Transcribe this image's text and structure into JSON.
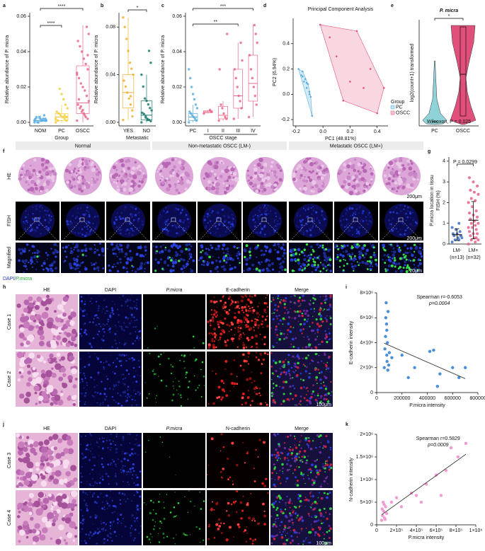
{
  "panel_letters": [
    "a",
    "b",
    "c",
    "d",
    "e",
    "f",
    "g",
    "h",
    "i",
    "j",
    "k"
  ],
  "chart_data": [
    {
      "type": "box",
      "ylabel": "Relative abundance of P. micra",
      "xlabel": "Group",
      "categories": [
        "NOM",
        "PC",
        "OSCC"
      ],
      "colors": [
        "#5aaee0",
        "#f2cf3a",
        "#e8688a"
      ],
      "points": [
        [
          0,
          0.001,
          0.002,
          0.001,
          0.003,
          0,
          0.002,
          0.001,
          0.004,
          0.001,
          0.002,
          0,
          0.003,
          0.001,
          0.002
        ],
        [
          0,
          0.001,
          0.002,
          0.003,
          0.004,
          0.005,
          0.006,
          0.008,
          0.01,
          0.013,
          0.016,
          0.019,
          0.001,
          0.002,
          0.003,
          0.004
        ],
        [
          0.001,
          0.002,
          0.003,
          0.005,
          0.006,
          0.008,
          0.01,
          0.012,
          0.015,
          0.018,
          0.02,
          0.022,
          0.025,
          0.028,
          0.03,
          0.033,
          0.036,
          0.04,
          0.043,
          0.046,
          0.05,
          0.054,
          0.004,
          0.007,
          0.009,
          0.013,
          0.027,
          0.038
        ]
      ],
      "boxes": [
        [
          0,
          0.0005,
          0.001,
          0.002,
          0.004
        ],
        [
          0,
          0.001,
          0.003,
          0.005,
          0.01
        ],
        [
          0,
          0.005,
          0.011,
          0.032,
          0.055
        ]
      ],
      "ylim": [
        -0.002,
        0.062
      ],
      "yticks": [
        {
          "value": 0,
          "label": "0.00"
        },
        {
          "value": 0.02,
          "label": "0.02"
        },
        {
          "value": 0.04,
          "label": "0.04"
        },
        {
          "value": 0.06,
          "label": "0.06"
        }
      ],
      "annotations": [
        "****",
        "****"
      ]
    },
    {
      "type": "box",
      "ylabel": "Relative abundance of P. micra",
      "xlabel": "Metastatic",
      "categories": [
        "YES",
        "NO"
      ],
      "colors": [
        "#f0b030",
        "#1a7a6e"
      ],
      "points": [
        [
          0.002,
          0.01,
          0.015,
          0.02,
          0.025,
          0.03,
          0.035,
          0.04,
          0.045,
          0.05,
          0.06,
          0.07,
          0.08,
          0.088,
          0.005,
          0.022
        ],
        [
          0,
          0.001,
          0.002,
          0.003,
          0.005,
          0.007,
          0.008,
          0.01,
          0.012,
          0.015,
          0.018,
          0.02,
          0.03,
          0.04,
          0.05,
          0.06,
          0.002,
          0.004
        ]
      ],
      "boxes": [
        [
          0.002,
          0.012,
          0.025,
          0.04,
          0.088
        ],
        [
          0,
          0.002,
          0.006,
          0.018,
          0.04
        ]
      ],
      "ylim": [
        -0.003,
        0.092
      ],
      "yticks": [
        {
          "value": 0,
          "label": "0.00"
        },
        {
          "value": 0.04,
          "label": "0.04"
        },
        {
          "value": 0.08,
          "label": "0.08"
        }
      ],
      "annotations": [
        "*"
      ]
    },
    {
      "type": "box",
      "ylabel": "Relative abundance of P. micra",
      "xlabel": "OSCC stage",
      "categories": [
        "PC",
        "I",
        "II",
        "III",
        "IV"
      ],
      "colors": [
        "#5aaee0",
        "#e8688a",
        "#e8688a",
        "#e8688a",
        "#e8688a"
      ],
      "points": [
        [
          0,
          0.001,
          0.002,
          0.003,
          0.004,
          0.005,
          0.006,
          0.008,
          0.01,
          0.013,
          0.016,
          0.02,
          0.025,
          0.03
        ],
        [
          0.005,
          0.006,
          0.007
        ],
        [
          0.001,
          0.002,
          0.003,
          0.005,
          0.008,
          0.01,
          0.03,
          0.05
        ],
        [
          0.002,
          0.008,
          0.012,
          0.015,
          0.02,
          0.025,
          0.03,
          0.035,
          0.045
        ],
        [
          0.003,
          0.01,
          0.015,
          0.02,
          0.025,
          0.03,
          0.038,
          0.045,
          0.05,
          0.055
        ]
      ],
      "boxes": [
        [
          0,
          0.001,
          0.003,
          0.005,
          0.01
        ],
        [
          0.005,
          0.0055,
          0.006,
          0.0065,
          0.007
        ],
        [
          0.001,
          0.002,
          0.004,
          0.009,
          0.012
        ],
        [
          0.002,
          0.008,
          0.015,
          0.03,
          0.045
        ],
        [
          0.003,
          0.012,
          0.022,
          0.038,
          0.055
        ]
      ],
      "ylim": [
        -0.002,
        0.062
      ],
      "yticks": [
        {
          "value": 0,
          "label": "0.00"
        },
        {
          "value": 0.02,
          "label": "0.02"
        },
        {
          "value": 0.04,
          "label": "0.04"
        },
        {
          "value": 0.06,
          "label": "0.06"
        }
      ],
      "annotations": [
        "***",
        "**"
      ]
    },
    {
      "type": "scatter",
      "title": "Principal Component Analysis",
      "xlabel": "PC1 (48.81%)",
      "ylabel": "PC2 (6.94%)",
      "hull": true,
      "legend": "lower right",
      "legend_title": "Group",
      "series": [
        {
          "name": "PC",
          "color": "#5aaee0",
          "fill": "#bfe3f3",
          "x": [
            -0.18,
            -0.16,
            -0.15,
            -0.14,
            -0.13,
            -0.12,
            -0.11,
            -0.1,
            -0.09,
            -0.08,
            -0.15,
            -0.12,
            -0.1
          ],
          "y": [
            0.2,
            0.15,
            0.18,
            0.1,
            0.12,
            0.05,
            0.08,
            0.02,
            -0.02,
            -0.17,
            0.14,
            0.09,
            0
          ]
        },
        {
          "name": "OSCC",
          "color": "#e8507a",
          "fill": "#f7c6d3",
          "x": [
            -0.02,
            0.05,
            0.1,
            0.2,
            0.25,
            0.3,
            0.35,
            0.4,
            0.45,
            0.15
          ],
          "y": [
            0.55,
            0.45,
            0.3,
            0.1,
            0.5,
            0.05,
            0.2,
            -0.15,
            0.05,
            -0.05
          ]
        }
      ],
      "xlim": [
        -0.22,
        0.48
      ],
      "ylim": [
        -0.25,
        0.6
      ],
      "xticks": [
        -0.2,
        {
          "value": 0,
          "label": "0.0"
        },
        0.2,
        0.4
      ],
      "yticks": [
        -0.2,
        {
          "value": 0,
          "label": "0.0"
        },
        0.2,
        0.4
      ]
    },
    {
      "type": "violin",
      "title": "P. micra",
      "ylabel": "log2(count+1) transformed",
      "categories": [
        "PC",
        "OSCC"
      ],
      "colors": [
        "#8fd3d8",
        "#e0507a"
      ],
      "annotations": [
        "*",
        "Wilcoxon, P = 0.025"
      ]
    },
    {
      "type": "dot",
      "ylabel": [
        "P.micra location in tissu",
        "FISH (%)"
      ],
      "categories": [
        "LM-",
        "LM+"
      ],
      "n_labels": [
        "(n=13)",
        "(n=32)"
      ],
      "colors": [
        "#4a78c8",
        "#e8688a"
      ],
      "points": [
        [
          0.1,
          0.2,
          0.2,
          0.3,
          0.3,
          0.4,
          0.4,
          0.5,
          0.5,
          0.6,
          0.7,
          0.8,
          1
        ],
        [
          0,
          0.1,
          0.2,
          0.2,
          0.3,
          0.4,
          0.5,
          0.5,
          0.6,
          0.7,
          0.8,
          0.8,
          0.9,
          1,
          1,
          1.1,
          1.2,
          1.3,
          1.4,
          1.5,
          1.6,
          1.8,
          2,
          2.1,
          2.2,
          2.4,
          2.5,
          2.6,
          2.8,
          3,
          3.2,
          0.3
        ]
      ],
      "means": [
        0.45,
        1.15
      ],
      "sd": [
        0.28,
        0.9
      ],
      "ylim": [
        0,
        4.2
      ],
      "yticks": [
        0,
        1,
        2,
        3,
        4
      ],
      "annotations": [
        "P = 0.0299"
      ]
    },
    {
      "type": "scatter",
      "trendline": true,
      "xlabel": "P.micra intensity",
      "ylabel": "E-cadherin intensity",
      "annotations": [
        "Spearman r=-0.6053",
        "p=0.0004"
      ],
      "series": [
        {
          "color": "#4a90d9",
          "x": [
            60000,
            65000,
            70000,
            72000,
            75000,
            78000,
            80000,
            82000,
            85000,
            88000,
            90000,
            95000,
            100000,
            120000,
            200000,
            250000,
            300000,
            420000,
            450000,
            480000,
            500000,
            600000,
            650000,
            700000,
            80000
          ],
          "y": [
            2000000,
            3500000,
            4500000,
            6000000,
            7200000,
            5500000,
            3000000,
            2500000,
            4000000,
            1800000,
            6500000,
            2200000,
            3200000,
            2800000,
            3000000,
            1200000,
            2000000,
            3300000,
            3400000,
            500000,
            1500000,
            2000000,
            1200000,
            2000000,
            5000000
          ]
        }
      ],
      "xlim": [
        0,
        800000
      ],
      "ylim": [
        0,
        8000000
      ],
      "xticks": [
        0,
        200000,
        400000,
        600000,
        800000
      ],
      "yticks": [
        0,
        {
          "value": 2000000,
          "label": "2×10⁶"
        },
        {
          "value": 4000000,
          "label": "4×10⁶"
        },
        {
          "value": 6000000,
          "label": "6×10⁶"
        },
        {
          "value": 8000000,
          "label": "8×10⁶"
        }
      ]
    },
    {
      "type": "scatter",
      "trendline": true,
      "xlabel": "P.micra intensity",
      "ylabel": "N-cadherin intensity",
      "annotations": [
        "Spearman r=0.5829",
        "p=0.0009"
      ],
      "series": [
        {
          "color": "#f29ad2",
          "x": [
            50000,
            60000,
            70000,
            80000,
            90000,
            100000,
            55000,
            65000,
            75000,
            85000,
            150000,
            200000,
            250000,
            350000,
            400000,
            450000,
            500000,
            600000,
            650000,
            700000,
            750000,
            820000,
            900000
          ],
          "y": [
            100000,
            200000,
            300000,
            150000,
            400000,
            250000,
            350000,
            500000,
            450000,
            120000,
            500000,
            600000,
            400000,
            700000,
            650000,
            500000,
            900000,
            1100000,
            650000,
            1200000,
            1700000,
            1500000,
            1800000
          ]
        }
      ],
      "xlim": [
        0,
        1000000
      ],
      "ylim": [
        0,
        2000000
      ],
      "xticks": [
        0,
        {
          "value": 200000,
          "label": "2×10⁵"
        },
        {
          "value": 400000,
          "label": "4×10⁵"
        },
        {
          "value": 600000,
          "label": "6×10⁵"
        },
        {
          "value": 800000,
          "label": "8×10⁵"
        },
        {
          "value": 1000000,
          "label": "1×10⁶"
        }
      ],
      "yticks": [
        0,
        {
          "value": 500000,
          "label": "5×10⁵"
        },
        {
          "value": 1000000,
          "label": "1×10⁶"
        },
        {
          "value": 1500000,
          "label": "1.5×10⁶"
        },
        {
          "value": 2000000,
          "label": "2×10⁶"
        }
      ]
    }
  ],
  "fish_panel": {
    "groups": [
      "Normal",
      "Non-metastatic OSCC (LM-)",
      "Metastatic OSCC (LM+)"
    ],
    "rows": [
      "HE",
      "FISH",
      "Magnified"
    ],
    "scale_bars": [
      "200μm",
      "200μm",
      "20μm"
    ],
    "legend": [
      "DAPI/",
      "P.micra"
    ]
  },
  "if_panels": [
    {
      "columns": [
        "HE",
        "DAPI",
        "P.micra",
        "E-cadherin",
        "Merge"
      ],
      "rows": [
        "Case 1",
        "Case 2"
      ],
      "scale_bar": "100μm"
    },
    {
      "columns": [
        "HE",
        "DAPI",
        "P.micra",
        "N-cadherin",
        "Merge"
      ],
      "rows": [
        "Case 3",
        "Case 4"
      ],
      "scale_bar": "100μm"
    }
  ]
}
